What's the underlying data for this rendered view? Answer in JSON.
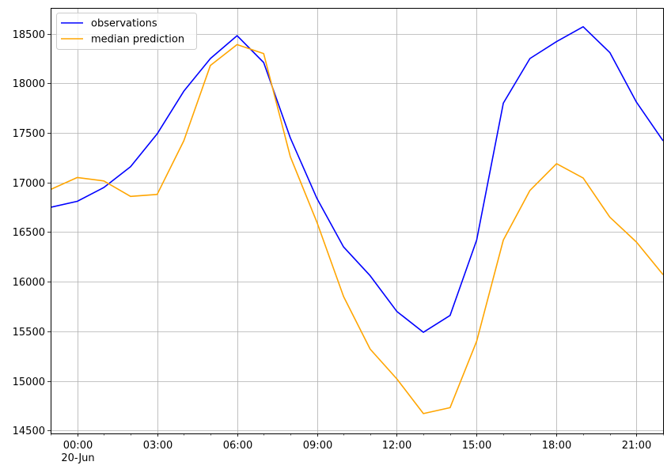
{
  "chart_data": {
    "type": "line",
    "title": "",
    "xlabel": "",
    "ylabel": "",
    "x": [
      "2023-06-19 23:00",
      "2023-06-20 00:00",
      "2023-06-20 01:00",
      "2023-06-20 02:00",
      "2023-06-20 03:00",
      "2023-06-20 04:00",
      "2023-06-20 05:00",
      "2023-06-20 06:00",
      "2023-06-20 07:00",
      "2023-06-20 08:00",
      "2023-06-20 09:00",
      "2023-06-20 10:00",
      "2023-06-20 11:00",
      "2023-06-20 12:00",
      "2023-06-20 13:00",
      "2023-06-20 14:00",
      "2023-06-20 15:00",
      "2023-06-20 16:00",
      "2023-06-20 17:00",
      "2023-06-20 18:00",
      "2023-06-20 19:00",
      "2023-06-20 20:00",
      "2023-06-20 21:00",
      "2023-06-20 22:00"
    ],
    "series": [
      {
        "name": "observations",
        "color": "#0000ff",
        "values": [
          16750,
          16810,
          16950,
          17160,
          17490,
          17920,
          18250,
          18480,
          18210,
          17450,
          16840,
          16350,
          16060,
          15700,
          15490,
          15660,
          16420,
          17800,
          18250,
          18420,
          18570,
          18310,
          17810,
          17420
        ]
      },
      {
        "name": "median prediction",
        "color": "#ffa500",
        "values": [
          16930,
          17050,
          17015,
          16860,
          16880,
          17420,
          18180,
          18390,
          18300,
          17260,
          16600,
          15850,
          15320,
          15020,
          14670,
          14730,
          15400,
          16420,
          16920,
          17190,
          17045,
          16650,
          16400,
          16070
        ]
      }
    ],
    "xticks": [
      {
        "index": 1,
        "label": "00:00",
        "sublabel": "20-Jun"
      },
      {
        "index": 4,
        "label": "03:00",
        "sublabel": ""
      },
      {
        "index": 7,
        "label": "06:00",
        "sublabel": ""
      },
      {
        "index": 10,
        "label": "09:00",
        "sublabel": ""
      },
      {
        "index": 13,
        "label": "12:00",
        "sublabel": ""
      },
      {
        "index": 16,
        "label": "15:00",
        "sublabel": ""
      },
      {
        "index": 19,
        "label": "18:00",
        "sublabel": ""
      },
      {
        "index": 22,
        "label": "21:00",
        "sublabel": ""
      }
    ],
    "yticks": [
      14500,
      15000,
      15500,
      16000,
      16500,
      17000,
      17500,
      18000,
      18500
    ],
    "ylim": [
      14470,
      18760
    ],
    "grid": true,
    "legend_position": "top-left"
  }
}
